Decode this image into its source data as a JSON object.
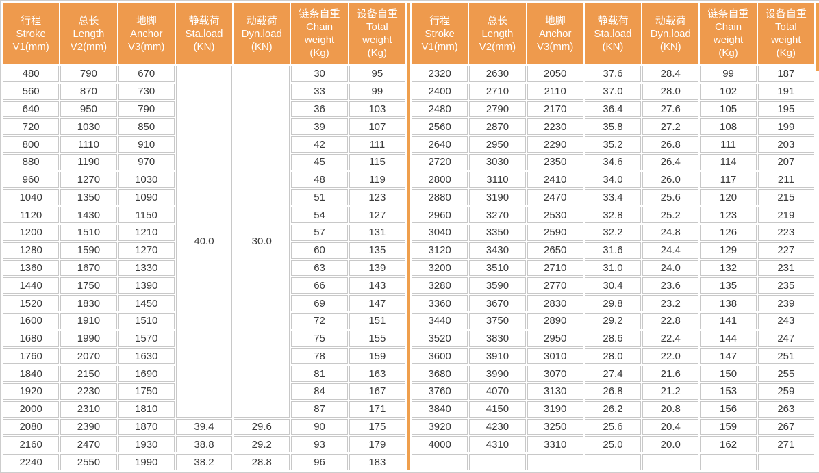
{
  "colors": {
    "header_bg": "#EE9A4D",
    "header_text": "#FFFFFF",
    "divider": "#EF9F4D",
    "grid": "#C8C8C8",
    "cell_bg": "#FFFFFF",
    "text": "#3A3A3A",
    "outer_border": "#CDCDCD"
  },
  "table": {
    "columns": [
      {
        "id": "stroke",
        "lines": [
          "行程",
          "Stroke",
          "V1(mm)"
        ]
      },
      {
        "id": "length",
        "lines": [
          "总长",
          "Length",
          "V2(mm)"
        ]
      },
      {
        "id": "anchor",
        "lines": [
          "地脚",
          "Anchor",
          "V3(mm)"
        ]
      },
      {
        "id": "static-load",
        "lines": [
          "静载荷",
          "Sta.load",
          "(KN)"
        ]
      },
      {
        "id": "dynamic-load",
        "lines": [
          "动载荷",
          "Dyn.load",
          "(KN)"
        ]
      },
      {
        "id": "chain-weight",
        "lines": [
          "链条自重",
          "Chain",
          "weight",
          "(Kg)"
        ]
      },
      {
        "id": "total-weight",
        "lines": [
          "设备自重",
          "Total",
          "weight",
          "(Kg)"
        ]
      }
    ],
    "left_merged": {
      "sta_load": "40.0",
      "dyn_load": "30.0",
      "start_row": 0,
      "row_span": 20
    },
    "left_rows": [
      [
        "480",
        "790",
        "670",
        null,
        null,
        "30",
        "95"
      ],
      [
        "560",
        "870",
        "730",
        null,
        null,
        "33",
        "99"
      ],
      [
        "640",
        "950",
        "790",
        null,
        null,
        "36",
        "103"
      ],
      [
        "720",
        "1030",
        "850",
        null,
        null,
        "39",
        "107"
      ],
      [
        "800",
        "1110",
        "910",
        null,
        null,
        "42",
        "111"
      ],
      [
        "880",
        "1190",
        "970",
        null,
        null,
        "45",
        "115"
      ],
      [
        "960",
        "1270",
        "1030",
        null,
        null,
        "48",
        "119"
      ],
      [
        "1040",
        "1350",
        "1090",
        null,
        null,
        "51",
        "123"
      ],
      [
        "1120",
        "1430",
        "1150",
        null,
        null,
        "54",
        "127"
      ],
      [
        "1200",
        "1510",
        "1210",
        null,
        null,
        "57",
        "131"
      ],
      [
        "1280",
        "1590",
        "1270",
        null,
        null,
        "60",
        "135"
      ],
      [
        "1360",
        "1670",
        "1330",
        null,
        null,
        "63",
        "139"
      ],
      [
        "1440",
        "1750",
        "1390",
        null,
        null,
        "66",
        "143"
      ],
      [
        "1520",
        "1830",
        "1450",
        null,
        null,
        "69",
        "147"
      ],
      [
        "1600",
        "1910",
        "1510",
        null,
        null,
        "72",
        "151"
      ],
      [
        "1680",
        "1990",
        "1570",
        null,
        null,
        "75",
        "155"
      ],
      [
        "1760",
        "2070",
        "1630",
        null,
        null,
        "78",
        "159"
      ],
      [
        "1840",
        "2150",
        "1690",
        null,
        null,
        "81",
        "163"
      ],
      [
        "1920",
        "2230",
        "1750",
        null,
        null,
        "84",
        "167"
      ],
      [
        "2000",
        "2310",
        "1810",
        null,
        null,
        "87",
        "171"
      ],
      [
        "2080",
        "2390",
        "1870",
        "39.4",
        "29.6",
        "90",
        "175"
      ],
      [
        "2160",
        "2470",
        "1930",
        "38.8",
        "29.2",
        "93",
        "179"
      ],
      [
        "2240",
        "2550",
        "1990",
        "38.2",
        "28.8",
        "96",
        "183"
      ]
    ],
    "right_rows": [
      [
        "2320",
        "2630",
        "2050",
        "37.6",
        "28.4",
        "99",
        "187"
      ],
      [
        "2400",
        "2710",
        "2110",
        "37.0",
        "28.0",
        "102",
        "191"
      ],
      [
        "2480",
        "2790",
        "2170",
        "36.4",
        "27.6",
        "105",
        "195"
      ],
      [
        "2560",
        "2870",
        "2230",
        "35.8",
        "27.2",
        "108",
        "199"
      ],
      [
        "2640",
        "2950",
        "2290",
        "35.2",
        "26.8",
        "111",
        "203"
      ],
      [
        "2720",
        "3030",
        "2350",
        "34.6",
        "26.4",
        "114",
        "207"
      ],
      [
        "2800",
        "3110",
        "2410",
        "34.0",
        "26.0",
        "117",
        "211"
      ],
      [
        "2880",
        "3190",
        "2470",
        "33.4",
        "25.6",
        "120",
        "215"
      ],
      [
        "2960",
        "3270",
        "2530",
        "32.8",
        "25.2",
        "123",
        "219"
      ],
      [
        "3040",
        "3350",
        "2590",
        "32.2",
        "24.8",
        "126",
        "223"
      ],
      [
        "3120",
        "3430",
        "2650",
        "31.6",
        "24.4",
        "129",
        "227"
      ],
      [
        "3200",
        "3510",
        "2710",
        "31.0",
        "24.0",
        "132",
        "231"
      ],
      [
        "3280",
        "3590",
        "2770",
        "30.4",
        "23.6",
        "135",
        "235"
      ],
      [
        "3360",
        "3670",
        "2830",
        "29.8",
        "23.2",
        "138",
        "239"
      ],
      [
        "3440",
        "3750",
        "2890",
        "29.2",
        "22.8",
        "141",
        "243"
      ],
      [
        "3520",
        "3830",
        "2950",
        "28.6",
        "22.4",
        "144",
        "247"
      ],
      [
        "3600",
        "3910",
        "3010",
        "28.0",
        "22.0",
        "147",
        "251"
      ],
      [
        "3680",
        "3990",
        "3070",
        "27.4",
        "21.6",
        "150",
        "255"
      ],
      [
        "3760",
        "4070",
        "3130",
        "26.8",
        "21.2",
        "153",
        "259"
      ],
      [
        "3840",
        "4150",
        "3190",
        "26.2",
        "20.8",
        "156",
        "263"
      ],
      [
        "3920",
        "4230",
        "3250",
        "25.6",
        "20.4",
        "159",
        "267"
      ],
      [
        "4000",
        "4310",
        "3310",
        "25.0",
        "20.0",
        "162",
        "271"
      ],
      [
        "",
        "",
        "",
        "",
        "",
        "",
        ""
      ]
    ]
  }
}
